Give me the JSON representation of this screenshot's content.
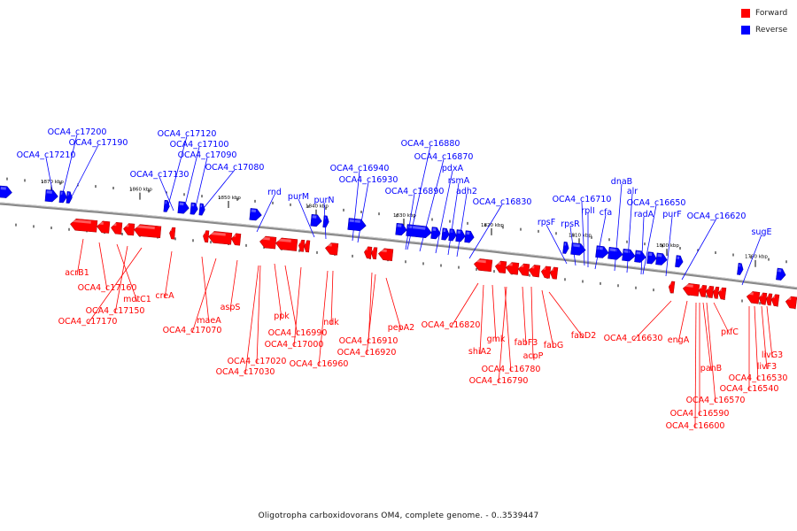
{
  "legend": {
    "items": [
      {
        "label": "Forward",
        "color": "#ff0000"
      },
      {
        "label": "Reverse",
        "color": "#0000ff"
      }
    ]
  },
  "caption": "Oligotropha carboxidovorans OM4, complete genome. - 0..3539447",
  "colors": {
    "forward": "#ff0000",
    "reverse": "#0000ff",
    "backbone": "#888888"
  },
  "scale": {
    "labels": [
      "1870 kbp",
      "1860 kbp",
      "1850 kbp",
      "1840 kbp",
      "1830 kbp",
      "1820 kbp",
      "1810 kbp",
      "1800 kbp",
      "1790 kbp"
    ]
  },
  "reverse_labels": [
    "OCA4_c17200",
    "OCA4_c17190",
    "OCA4_c17210",
    "OCA4_c17120",
    "OCA4_c17100",
    "OCA4_c17090",
    "OCA4_c17130",
    "OCA4_c17080",
    "rnd",
    "purM",
    "purN",
    "OCA4_c16940",
    "OCA4_c16930",
    "OCA4_c16880",
    "OCA4_c16870",
    "pdxA",
    "OCA4_c16890",
    "rsmA",
    "adh2",
    "OCA4_c16830",
    "rpsF",
    "rpsR",
    "OCA4_c16710",
    "rplI",
    "cfa",
    "dnaB",
    "alr",
    "OCA4_c16650",
    "radA",
    "purF",
    "OCA4_c16620",
    "sugE"
  ],
  "forward_labels": [
    "acrB1",
    "OCA4_c17160",
    "mdtC1",
    "OCA4_c17150",
    "OCA4_c17170",
    "creA",
    "maeA",
    "OCA4_c17070",
    "aspS",
    "ppk",
    "OCA4_c16990",
    "OCA4_c17000",
    "OCA4_c17020",
    "OCA4_c17030",
    "ndk",
    "OCA4_c16960",
    "OCA4_c16910",
    "OCA4_c16920",
    "pepA2",
    "OCA4_c16820",
    "shiA2",
    "gmk",
    "fabF3",
    "acpP",
    "OCA4_c16780",
    "OCA4_c16790",
    "fabG",
    "fabD2",
    "OCA4_c16630",
    "engA",
    "prfC",
    "panB",
    "OCA4_c16570",
    "OCA4_c16590",
    "OCA4_c16600",
    "livG3",
    "livF3",
    "OCA4_c16530",
    "OCA4_c16540"
  ]
}
